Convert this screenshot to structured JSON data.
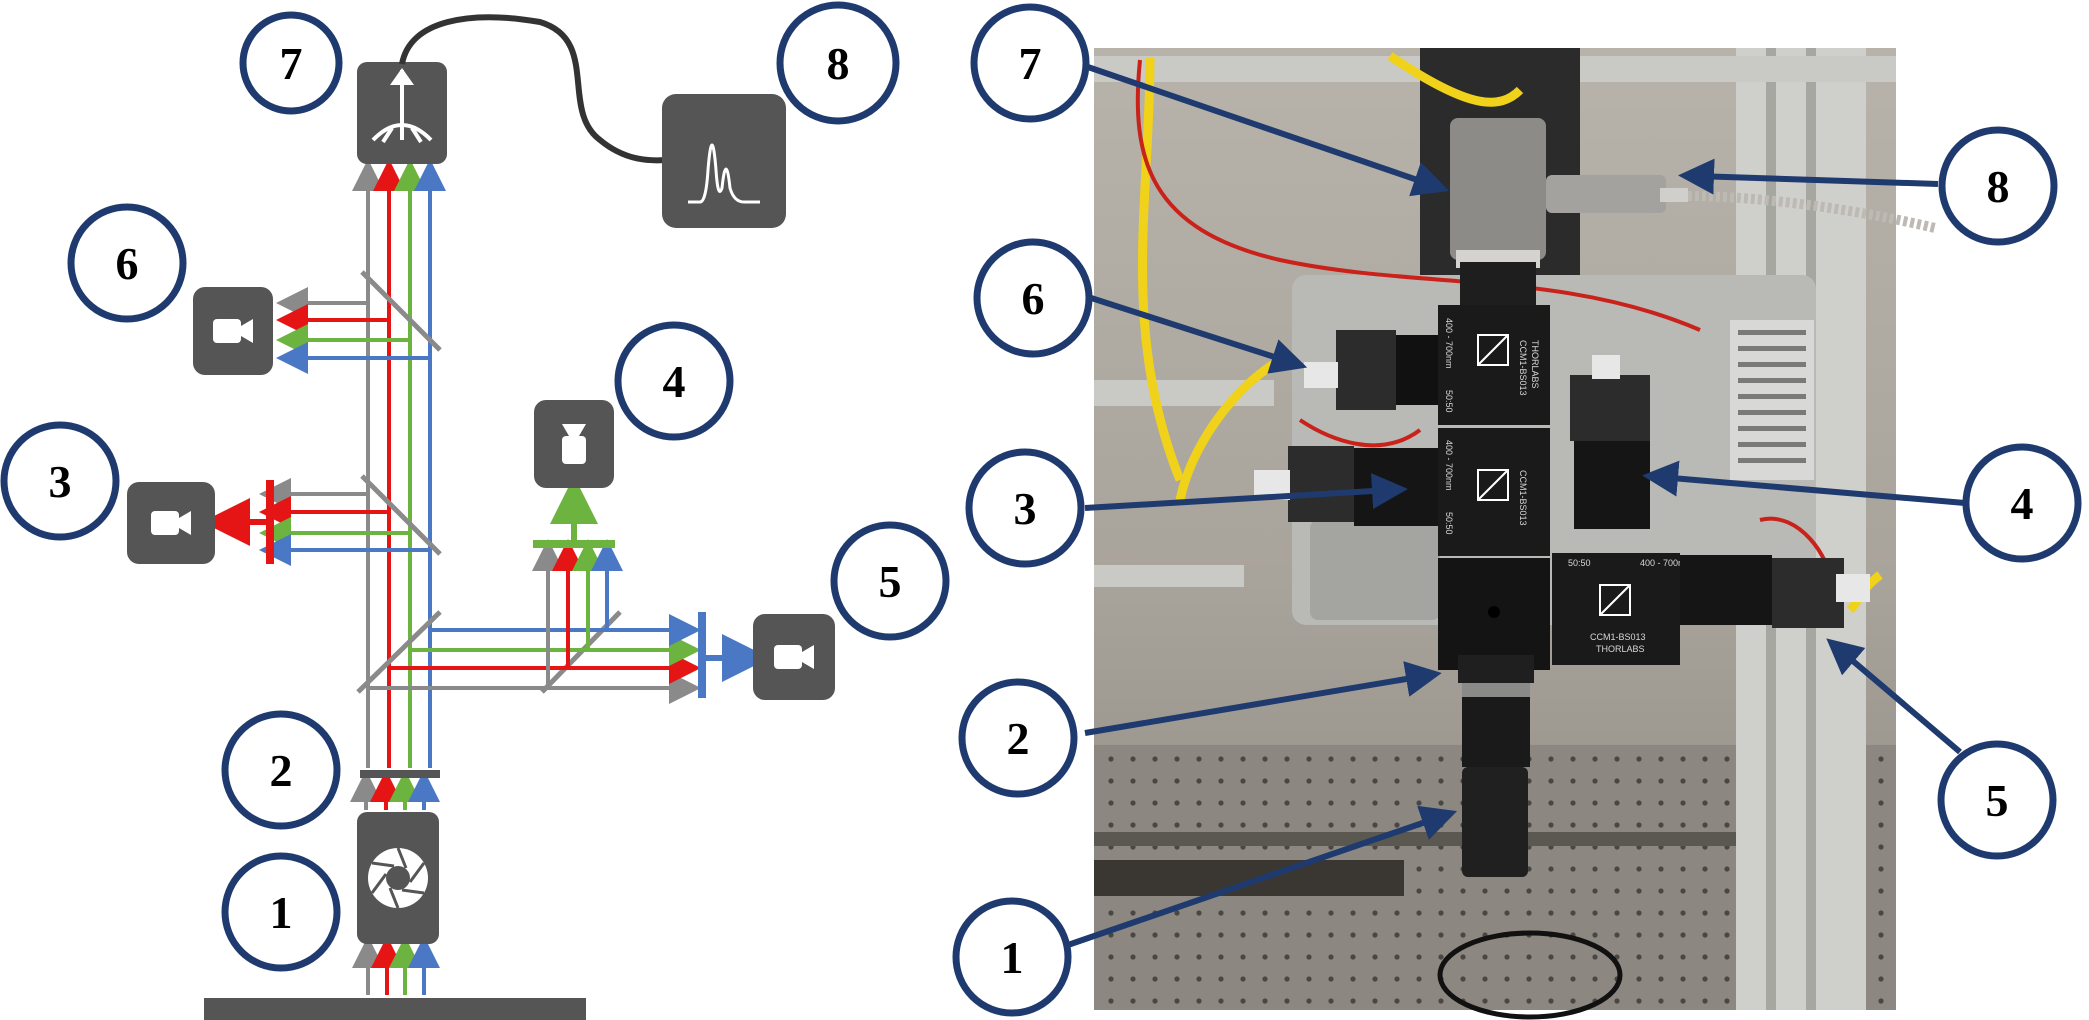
{
  "colors": {
    "badge_ring": "#1f3a6e",
    "arrow": "#1f3a6e",
    "device": "#555555",
    "beam_gray": "#8a8a8a",
    "beam_red": "#e51515",
    "beam_green": "#6db33f",
    "beam_blue": "#4a78c4",
    "stage_bar": "#555555"
  },
  "left_diagram": {
    "labels": [
      "1",
      "2",
      "3",
      "4",
      "5",
      "6",
      "7",
      "8"
    ],
    "devices": {
      "aperture": "aperture-icon",
      "camera_3": "camera-icon",
      "camera_4": "camera-icon",
      "camera_5": "camera-icon",
      "camera_6": "camera-icon",
      "fiber_head": "fiber-coupler-icon",
      "spectrometer": "spectrum-icon"
    }
  },
  "right_photo": {
    "labels": [
      "7",
      "8",
      "6",
      "3",
      "4",
      "2",
      "5",
      "1"
    ],
    "printed_text": {
      "cube_model": "CCM1-BS013",
      "brand": "THORLABS",
      "wavelength": "400 - 700nm",
      "ratio": "50:50"
    }
  }
}
